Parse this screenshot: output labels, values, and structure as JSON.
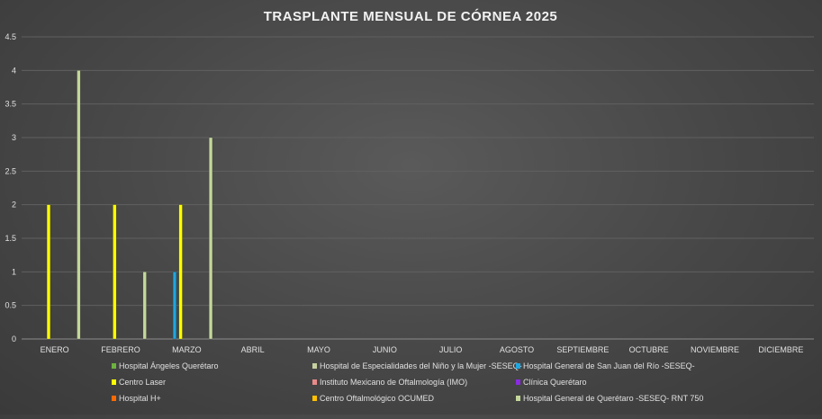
{
  "chart_data": {
    "type": "bar",
    "title": "TRASPLANTE MENSUAL DE CÓRNEA 2025",
    "categories": [
      "ENERO",
      "FEBRERO",
      "MARZO",
      "ABRIL",
      "MAYO",
      "JUNIO",
      "JULIO",
      "AGOSTO",
      "SEPTIEMBRE",
      "OCTUBRE",
      "NOVIEMBRE",
      "DICIEMBRE"
    ],
    "ylim": [
      0,
      4.5
    ],
    "yticks": [
      "0",
      "0.5",
      "1",
      "1.5",
      "2",
      "2.5",
      "3",
      "3.5",
      "4",
      "4.5"
    ],
    "grid": true,
    "legend_position": "bottom",
    "series": [
      {
        "name": "Hospital Ángeles Querétaro",
        "color": "#6db33f",
        "values": [
          0,
          0,
          0,
          0,
          0,
          0,
          0,
          0,
          0,
          0,
          0,
          0
        ]
      },
      {
        "name": "Hospital de Especialidades del Niño y la Mujer -SESEQ-",
        "color": "#c5d0a0",
        "values": [
          0,
          0,
          0,
          0,
          0,
          0,
          0,
          0,
          0,
          0,
          0,
          0
        ]
      },
      {
        "name": "Hospital General de San Juan del Río -SESEQ-",
        "color": "#1ea7e1",
        "values": [
          0,
          0,
          1,
          0,
          0,
          0,
          0,
          0,
          0,
          0,
          0,
          0
        ]
      },
      {
        "name": "Centro Laser",
        "color": "#ffff00",
        "values": [
          2,
          2,
          2,
          0,
          0,
          0,
          0,
          0,
          0,
          0,
          0,
          0
        ]
      },
      {
        "name": "Instituto Mexicano de Oftalmología (IMO)",
        "color": "#e88a8a",
        "values": [
          0,
          0,
          0,
          0,
          0,
          0,
          0,
          0,
          0,
          0,
          0,
          0
        ]
      },
      {
        "name": "Clínica Querétaro",
        "color": "#8a2be2",
        "values": [
          0,
          0,
          0,
          0,
          0,
          0,
          0,
          0,
          0,
          0,
          0,
          0
        ]
      },
      {
        "name": "Hospital H+",
        "color": "#ff6a00",
        "values": [
          0,
          0,
          0,
          0,
          0,
          0,
          0,
          0,
          0,
          0,
          0,
          0
        ]
      },
      {
        "name": "Centro Oftalmológico OCUMED",
        "color": "#ffc000",
        "values": [
          0,
          0,
          0,
          0,
          0,
          0,
          0,
          0,
          0,
          0,
          0,
          0
        ]
      },
      {
        "name": "Hospital General de Querétaro -SESEQ- RNT 750",
        "color": "#c4d79b",
        "values": [
          4,
          1,
          3,
          0,
          0,
          0,
          0,
          0,
          0,
          0,
          0,
          0
        ]
      }
    ]
  }
}
